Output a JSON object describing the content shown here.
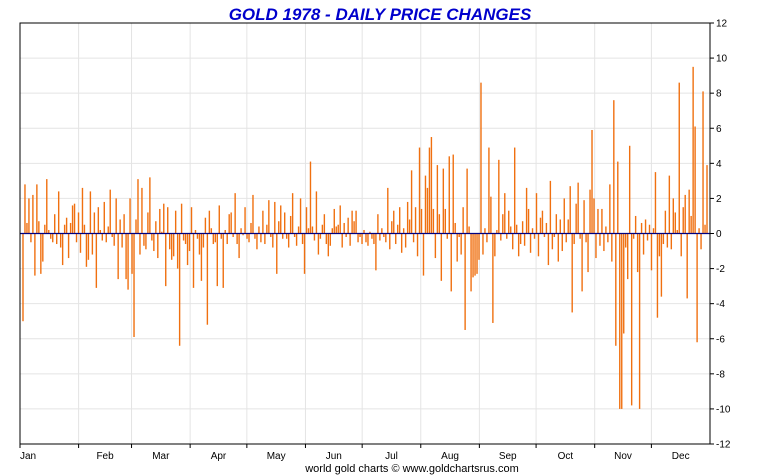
{
  "chart_data": {
    "type": "bar",
    "title": "GOLD 1978 - DAILY PRICE CHANGES",
    "footer": "world gold charts © www.goldchartsrus.com",
    "xlabel": "",
    "ylabel": "",
    "ylim": [
      -12,
      12
    ],
    "yticks": [
      12,
      10,
      8,
      6,
      4,
      2,
      0,
      -2,
      -4,
      -6,
      -8,
      -10,
      -12
    ],
    "ytick_labels": [
      "12",
      "10",
      "8",
      "6",
      "4",
      "2",
      "0",
      "-2",
      "-4",
      "-6",
      "-8",
      "-10",
      "-12"
    ],
    "months": [
      "Jan",
      "Feb",
      "Mar",
      "Apr",
      "May",
      "Jun",
      "Jul",
      "Aug",
      "Sep",
      "Oct",
      "Nov",
      "Dec"
    ],
    "grid": true,
    "colors": {
      "title": "#0000cc",
      "bar": "#f07010",
      "zero_line": "#000080",
      "grid": "#e4e4e4",
      "axis": "#000000"
    },
    "series": [
      {
        "name": "Daily change",
        "values": [
          -5.0,
          2.8,
          0.6,
          2.0,
          -0.5,
          2.2,
          -2.4,
          2.8,
          0.7,
          -2.3,
          -1.6,
          0.5,
          3.1,
          0.2,
          -0.3,
          -0.5,
          1.1,
          -0.6,
          2.4,
          -0.8,
          -1.8,
          0.5,
          0.9,
          -1.4,
          0.6,
          1.6,
          1.7,
          -0.5,
          1.2,
          -1.1,
          2.6,
          0.5,
          -1.9,
          -1.5,
          2.4,
          -1.2,
          1.2,
          -3.1,
          1.5,
          0.2,
          -0.4,
          1.8,
          -0.5,
          0.4,
          2.5,
          -0.2,
          -0.7,
          2.0,
          -2.6,
          0.8,
          -0.8,
          1.1,
          -2.6,
          -3.2,
          2.0,
          -2.3,
          -5.9,
          0.8,
          3.1,
          -1.2,
          2.6,
          -0.7,
          -0.9,
          1.2,
          3.2,
          -0.4,
          -1.0,
          0.7,
          -1.4,
          1.4,
          0.1,
          1.7,
          -3.0,
          1.5,
          -0.9,
          -1.5,
          -1.3,
          1.3,
          -2.0,
          -6.4,
          1.7,
          -0.4,
          -0.6,
          -1.8,
          -1.0,
          1.5,
          -3.1,
          0.2,
          -0.3,
          -1.2,
          -2.7,
          -0.8,
          0.9,
          -5.2,
          1.3,
          0.3,
          -0.6,
          -0.5,
          -3.0,
          1.6,
          -0.3,
          -3.1,
          0.2,
          -0.6,
          1.1,
          1.2,
          -0.2,
          2.3,
          -0.6,
          -1.4,
          0.3,
          -0.1,
          1.5,
          -0.3,
          -0.5,
          0.6,
          2.2,
          -0.3,
          -0.9,
          0.4,
          -0.5,
          1.3,
          -0.6,
          0.5,
          1.9,
          -0.2,
          -0.8,
          1.8,
          -2.3,
          0.7,
          1.6,
          -0.3,
          1.2,
          -0.3,
          -0.8,
          1.0,
          2.3,
          -0.2,
          -0.7,
          0.4,
          2.0,
          -0.6,
          -2.3,
          1.5,
          0.3,
          4.1,
          0.4,
          -0.4,
          2.4,
          -1.2,
          -0.3,
          0.5,
          1.1,
          -0.6,
          -1.3,
          -0.7,
          0.3,
          1.4,
          0.4,
          0.5,
          1.6,
          -0.8,
          0.6,
          -0.2,
          0.9,
          -0.7,
          1.3,
          0.7,
          1.3,
          -0.5,
          -0.2,
          -0.6,
          0.2,
          -0.5,
          -0.7,
          0.1,
          -0.3,
          -0.6,
          -2.1,
          1.1,
          -0.4,
          0.3,
          -0.2,
          -0.5,
          2.6,
          -0.9,
          0.7,
          1.3,
          -0.6,
          0.5,
          1.5,
          -1.1,
          0.3,
          -0.8,
          1.8,
          0.8,
          3.6,
          -0.5,
          1.5,
          -1.3,
          4.9,
          1.4,
          -2.4,
          3.3,
          2.6,
          4.9,
          5.5,
          1.4,
          -1.4,
          3.9,
          1.1,
          -2.7,
          3.7,
          1.4,
          -0.3,
          4.4,
          -3.3,
          4.5,
          0.6,
          -1.6,
          -0.2,
          -1.2,
          1.5,
          -5.5,
          3.7,
          0.4,
          -3.3,
          -2.5,
          -2.4,
          -2.3,
          -1.5,
          8.6,
          -1.2,
          0.3,
          -0.5,
          4.9,
          2.1,
          -5.1,
          -1.3,
          0.2,
          4.2,
          -0.4,
          1.1,
          2.3,
          -0.3,
          1.3,
          0.4,
          -0.9,
          4.9,
          0.5,
          -1.3,
          -0.6,
          0.7,
          -0.7,
          2.6,
          1.4,
          -1.1,
          0.3,
          -0.3,
          2.3,
          -1.3,
          0.9,
          1.3,
          -0.2,
          0.6,
          -1.8,
          3.0,
          -0.9,
          -0.2,
          1.1,
          -1.6,
          0.8,
          -1.0,
          2.0,
          -0.5,
          0.8,
          2.7,
          -4.5,
          -0.6,
          1.7,
          2.9,
          -0.3,
          -3.3,
          1.9,
          -0.5,
          -2.2,
          2.5,
          5.9,
          2.0,
          -1.4,
          1.4,
          -0.7,
          1.4,
          -1.0,
          0.4,
          -0.5,
          2.8,
          -1.6,
          7.6,
          -6.4,
          4.1,
          -10.0,
          -10.0,
          -5.7,
          -0.8,
          -2.6,
          5.0,
          -9.8,
          -0.3,
          1.0,
          -2.2,
          -10.0,
          0.6,
          -1.2,
          0.8,
          -0.4,
          0.5,
          -2.1,
          0.3,
          3.5,
          -4.8,
          -1.3,
          -3.6,
          -0.6,
          1.3,
          -0.8,
          3.3,
          -0.9,
          2.0,
          1.2,
          0.2,
          8.6,
          -1.3,
          1.5,
          2.2,
          -3.7,
          2.5,
          1.0,
          9.5,
          6.1,
          -6.2,
          0.3,
          -0.9,
          8.1,
          0.5,
          3.9
        ]
      }
    ]
  }
}
